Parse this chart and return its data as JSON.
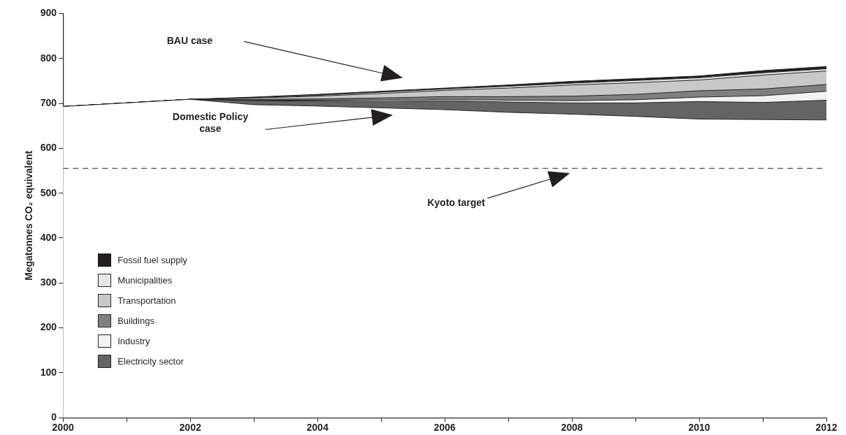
{
  "chart_data": {
    "type": "area",
    "stacked": true,
    "ylabel": "Megatonnes CO₂ equivalent",
    "x": [
      2000,
      2001,
      2002,
      2003,
      2004,
      2005,
      2006,
      2007,
      2008,
      2009,
      2010,
      2011,
      2012
    ],
    "xlim": [
      2000,
      2012
    ],
    "xticks": [
      2000,
      {
        "value": 2001,
        "label": null
      },
      2002,
      {
        "value": 2003,
        "label": null
      },
      2004,
      {
        "value": 2005,
        "label": null
      },
      2006,
      {
        "value": 2007,
        "label": null
      },
      2008,
      {
        "value": 2009,
        "label": null
      },
      2010,
      {
        "value": 2011,
        "label": null
      },
      2012
    ],
    "ylim": [
      0,
      900
    ],
    "yticks": [
      0,
      100,
      200,
      300,
      400,
      500,
      600,
      700,
      800,
      900
    ],
    "grid": false,
    "legend": "bottom left",
    "series": [
      {
        "color": "#ffffff",
        "values": [
          693,
          701,
          709,
          697,
          694,
          690,
          686,
          680,
          676,
          671,
          665,
          664,
          663
        ]
      },
      {
        "name": "Electricity sector",
        "color": "#646464",
        "values": [
          0,
          0,
          0,
          9,
          11,
          14,
          20,
          23,
          25,
          30,
          39,
          38,
          44
        ]
      },
      {
        "name": "Industry",
        "color": "#f2f2f2",
        "values": [
          0,
          0,
          0,
          1,
          2,
          3,
          3,
          4,
          5,
          7,
          10,
          15,
          20
        ]
      },
      {
        "name": "Buildings",
        "color": "#808080",
        "values": [
          0,
          0,
          0,
          2,
          3,
          5,
          6,
          8,
          10,
          12,
          14,
          15,
          15
        ]
      },
      {
        "name": "Transportation",
        "color": "#c8c8c8",
        "values": [
          0,
          0,
          0,
          3,
          6,
          10,
          14,
          19,
          25,
          26,
          24,
          31,
          30
        ]
      },
      {
        "name": "Municipalities",
        "color": "#e6e6e6",
        "values": [
          0,
          0,
          0,
          1,
          2,
          3,
          3,
          4,
          4,
          5,
          5,
          5,
          5
        ]
      },
      {
        "name": "Fossil fuel supply",
        "color": "#231f20",
        "values": [
          0,
          0,
          0,
          1,
          2,
          2,
          2,
          3,
          4,
          4,
          4,
          5,
          5
        ]
      }
    ],
    "ref_lines": [
      {
        "axis": "y",
        "value": 555,
        "color": "#666666",
        "line_style": "dashed"
      }
    ],
    "annotations": [
      "BAU case",
      "Domestic Policy case",
      "Kyoto target"
    ]
  }
}
